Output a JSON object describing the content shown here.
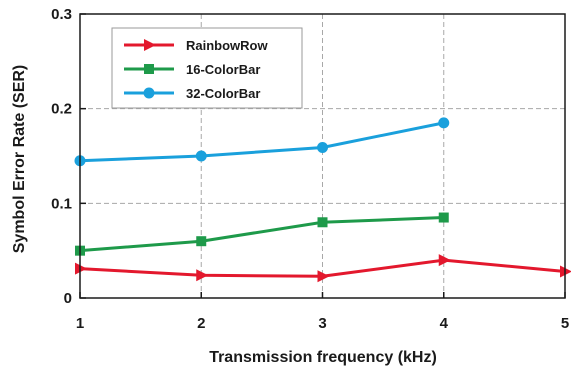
{
  "chart_data": {
    "type": "line",
    "title": "",
    "xlabel": "Transmission frequency (kHz)",
    "ylabel": "Symbol Error Rate (SER)",
    "xlim": [
      1,
      5
    ],
    "ylim": [
      0,
      0.3
    ],
    "x_ticks": [
      "1",
      "2",
      "3",
      "4",
      "5"
    ],
    "y_ticks": [
      "0",
      "0.1",
      "0.2",
      "0.3"
    ],
    "grid": true,
    "legend_position": "top-left",
    "series": [
      {
        "name": "RainbowRow",
        "color": "#e3182d",
        "marker": "triangle-right",
        "x": [
          1,
          2,
          3,
          4,
          5
        ],
        "y": [
          0.031,
          0.024,
          0.023,
          0.04,
          0.028
        ]
      },
      {
        "name": "16-ColorBar",
        "color": "#1e9a4a",
        "marker": "square",
        "x": [
          1,
          2,
          3,
          4
        ],
        "y": [
          0.05,
          0.06,
          0.08,
          0.085
        ]
      },
      {
        "name": "32-ColorBar",
        "color": "#1aa0dc",
        "marker": "circle",
        "x": [
          1,
          2,
          3,
          4
        ],
        "y": [
          0.145,
          0.15,
          0.159,
          0.185
        ]
      }
    ]
  }
}
